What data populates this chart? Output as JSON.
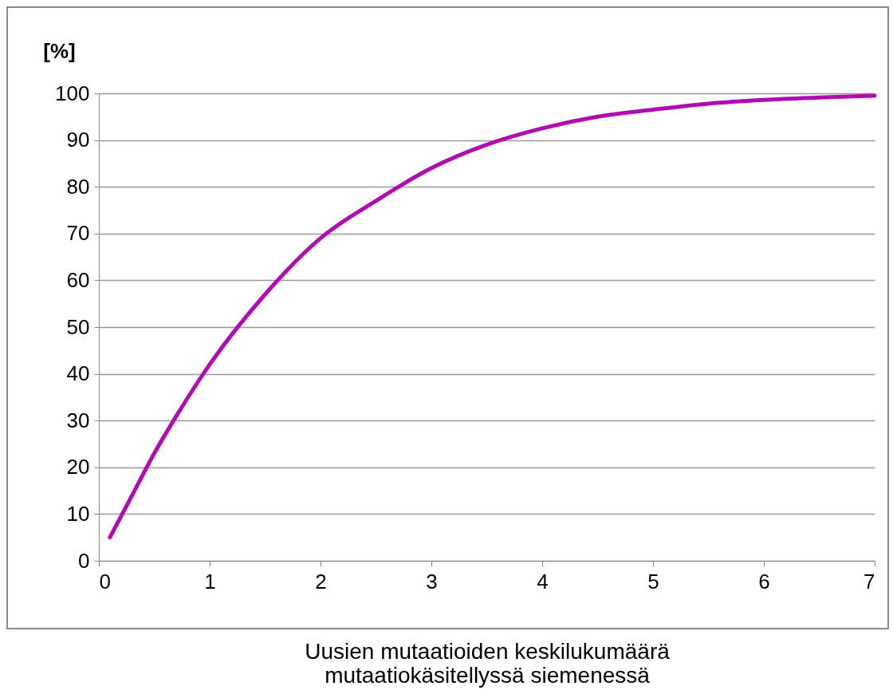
{
  "chart_data": {
    "type": "line",
    "ylabel": "[%]",
    "xlabel": "Uusien mutaatioiden keskilukumäärä mutaatiokäsitellyssä siemenessä",
    "x": [
      0.1,
      0.3,
      0.5,
      0.7,
      1,
      1.5,
      2,
      2.5,
      3,
      3.5,
      4,
      4.5,
      5,
      5.5,
      6,
      6.5,
      7
    ],
    "series": [
      {
        "color": "#b10cb1",
        "values": [
          5,
          14,
          23,
          31,
          42,
          57,
          69,
          77,
          84,
          89,
          92.5,
          95,
          96.5,
          97.8,
          98.6,
          99.1,
          99.5
        ]
      }
    ],
    "xlim": [
      0,
      7
    ],
    "xticks": [
      0,
      1,
      2,
      3,
      4,
      5,
      6,
      7
    ],
    "ylim": [
      0,
      100
    ],
    "yticks": [
      0,
      10,
      20,
      30,
      40,
      50,
      60,
      70,
      80,
      90,
      100
    ],
    "grid": "y"
  }
}
